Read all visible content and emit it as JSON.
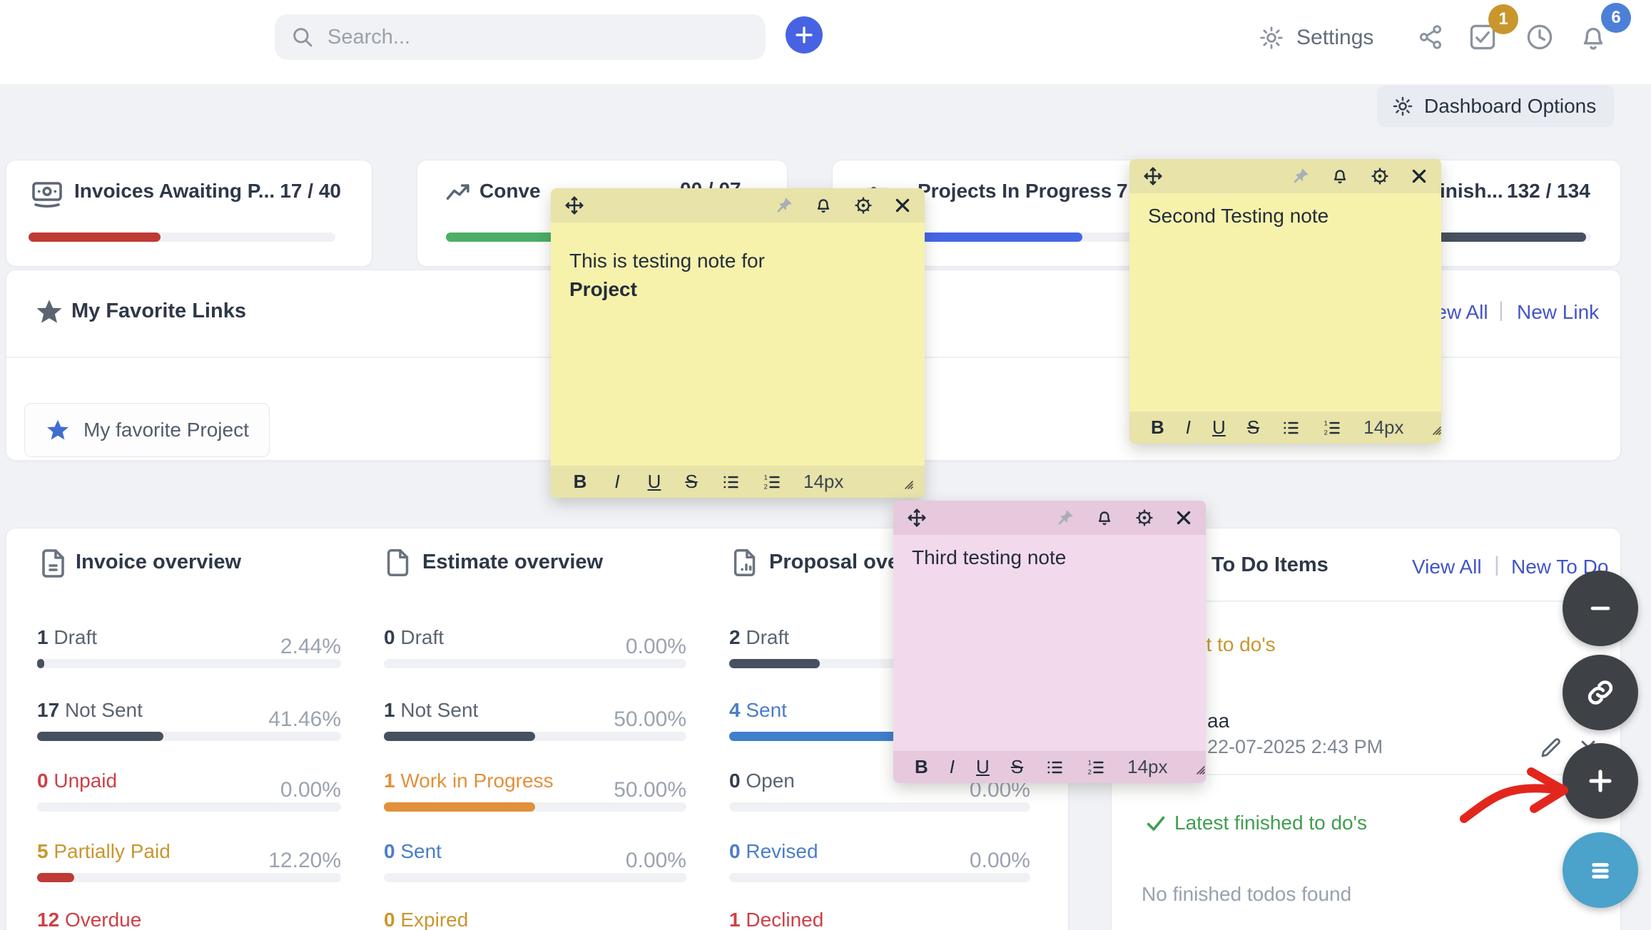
{
  "colors": {
    "accent_blue": "#4763e4",
    "link_blue": "#4254cb",
    "badge_gold": "#c9962e",
    "badge_blue": "#4c80d8",
    "bar_dark": "#47505e",
    "bar_red": "#bf3a35",
    "bar_green": "#4cae67",
    "bar_blue": "#4566e5",
    "bar_orange": "#e2903b",
    "label_red": "#cc4146",
    "label_gold": "#c9962e",
    "label_orange": "#e2903b",
    "label_blue": "#4a7dc9",
    "finished_green": "#3f9e4f",
    "note_yellow": "#f6f2ac",
    "note_pink": "#f3d9ec",
    "float_dark": "#3e4246",
    "float_teal": "#4ba2ca",
    "arrow_red": "#e3261d"
  },
  "icons": {
    "topbar": [
      "search-icon",
      "plus-icon",
      "gear-icon",
      "share-icon",
      "check-square-icon",
      "clock-icon",
      "bell-icon"
    ],
    "cards": [
      "banknote-icon",
      "trend-up-icon",
      "sliders-icon"
    ],
    "overview": [
      "invoice-file-icon",
      "estimate-file-icon",
      "proposal-file-icon"
    ],
    "note_header": [
      "move-icon",
      "pin-icon",
      "bell-icon",
      "color-gear-icon",
      "close-icon"
    ],
    "note_toolbar": [
      "bold",
      "italic",
      "underline",
      "strikethrough",
      "bullet-list-icon",
      "numbered-list-icon"
    ],
    "floating": [
      "minus-icon",
      "link-icon",
      "plus-icon",
      "menu-icon"
    ]
  },
  "topbar": {
    "search_placeholder": "Search...",
    "settings": "Settings",
    "tasks_badge": "1",
    "notifications_badge": "6"
  },
  "dashboard_options": "Dashboard Options",
  "stat_cards": [
    {
      "title": "Invoices Awaiting P...",
      "value": "17 / 40",
      "fill": 43
    },
    {
      "title": "Conve",
      "value": "00 / 07",
      "fill": 45
    },
    {
      "title": "Projects In Progress",
      "value": "7",
      "fill": 69
    },
    {
      "title": "inish...",
      "value": "132 / 134",
      "fill": 98.5
    }
  ],
  "favorites": {
    "title": "My Favorite Links",
    "view_all": "View All",
    "divider": "|",
    "new_link": "New Link",
    "item": "My favorite Project"
  },
  "note_toolbar": {
    "bold": "B",
    "italic": "I",
    "underline": "U",
    "strike": "S",
    "size": "14px"
  },
  "notes": [
    {
      "line1": "This is testing note for",
      "line2": "Project"
    },
    {
      "line1": "Second Testing note"
    },
    {
      "line1": "Third testing note"
    }
  ],
  "overview": {
    "invoice": {
      "title": "Invoice overview",
      "rows": [
        {
          "count": "1",
          "label": "Draft",
          "pct": "2.44%",
          "fill": 2.44
        },
        {
          "count": "17",
          "label": "Not Sent",
          "pct": "41.46%",
          "fill": 41.46
        },
        {
          "count": "0",
          "label": "Unpaid",
          "pct": "0.00%",
          "fill": 0
        },
        {
          "count": "5",
          "label": "Partially Paid",
          "pct": "12.20%",
          "fill": 12.2
        },
        {
          "count": "12",
          "label": "Overdue",
          "pct": "",
          "fill": 0
        }
      ]
    },
    "estimate": {
      "title": "Estimate overview",
      "rows": [
        {
          "count": "0",
          "label": "Draft",
          "pct": "0.00%",
          "fill": 0
        },
        {
          "count": "1",
          "label": "Not Sent",
          "pct": "50.00%",
          "fill": 50
        },
        {
          "count": "1",
          "label": "Work in Progress",
          "pct": "50.00%",
          "fill": 50
        },
        {
          "count": "0",
          "label": "Sent",
          "pct": "0.00%",
          "fill": 0
        },
        {
          "count": "0",
          "label": "Expired",
          "pct": "",
          "fill": 0
        }
      ]
    },
    "proposal": {
      "title": "Proposal overview",
      "rows": [
        {
          "count": "2",
          "label": "Draft",
          "pct": "",
          "fill": 30
        },
        {
          "count": "4",
          "label": "Sent",
          "pct": "",
          "fill": 66.7
        },
        {
          "count": "0",
          "label": "Open",
          "pct": "0.00%",
          "fill": 0
        },
        {
          "count": "0",
          "label": "Revised",
          "pct": "0.00%",
          "fill": 0
        },
        {
          "count": "1",
          "label": "Declined",
          "pct": "",
          "fill": 0
        }
      ]
    }
  },
  "todo": {
    "title": "To Do Items",
    "view_all": "View All",
    "divider": "|",
    "new_to_do": "New To Do",
    "latest_heading": "Latest to do's",
    "item": {
      "title": "aa",
      "timestamp": "22-07-2025 2:43 PM"
    },
    "finished_heading": "Latest finished to do's",
    "no_finished": "No finished todos found"
  }
}
